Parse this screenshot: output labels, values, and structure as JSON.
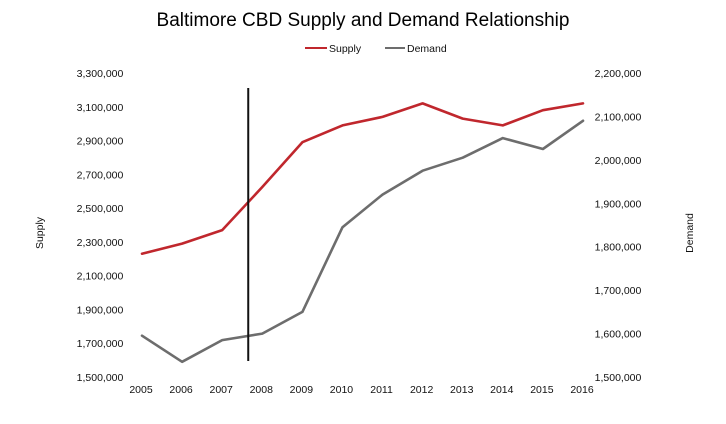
{
  "chart_data": {
    "type": "line",
    "title": "Baltimore CBD Supply and Demand Relationship",
    "xlabel": "",
    "categories": [
      "2005",
      "2006",
      "2007",
      "2008",
      "2009",
      "2010",
      "2011",
      "2012",
      "2013",
      "2014",
      "2015",
      "2016"
    ],
    "series": [
      {
        "name": "Supply",
        "axis": "left",
        "color": "#c0272d",
        "values": [
          2230000,
          2290000,
          2370000,
          2625000,
          2890000,
          2990000,
          3040000,
          3120000,
          3030000,
          2990000,
          3080000,
          3120000
        ]
      },
      {
        "name": "Demand",
        "axis": "right",
        "color": "#6d6d6d",
        "values": [
          1595000,
          1535000,
          1585000,
          1600000,
          1650000,
          1845000,
          1920000,
          1975000,
          2005000,
          2050000,
          2025000,
          2090000
        ]
      }
    ],
    "y_left": {
      "label": "Supply",
      "ylim": [
        1500000,
        3300000
      ],
      "ticks": [
        "3,300,000",
        "3,100,000",
        "2,900,000",
        "2,700,000",
        "2,500,000",
        "2,300,000",
        "2,100,000",
        "1,900,000",
        "1,700,000",
        "1,500,000"
      ],
      "tick_values": [
        3300000,
        3100000,
        2900000,
        2700000,
        2500000,
        2300000,
        2100000,
        1900000,
        1700000,
        1500000
      ]
    },
    "y_right": {
      "label": "Demand",
      "ylim": [
        1500000,
        2200000
      ],
      "ticks": [
        "2,200,000",
        "2,100,000",
        "2,000,000",
        "1,900,000",
        "1,800,000",
        "1,700,000",
        "1,600,000",
        "1,500,000"
      ],
      "tick_values": [
        2200000,
        2100000,
        2000000,
        1900000,
        1800000,
        1700000,
        1600000,
        1500000
      ]
    },
    "annotations": [
      {
        "type": "vertical-line",
        "x": 2007.65,
        "color": "#111111"
      }
    ],
    "grid": false,
    "legend": {
      "placement": "top-center",
      "entries": [
        "Supply",
        "Demand"
      ]
    }
  }
}
